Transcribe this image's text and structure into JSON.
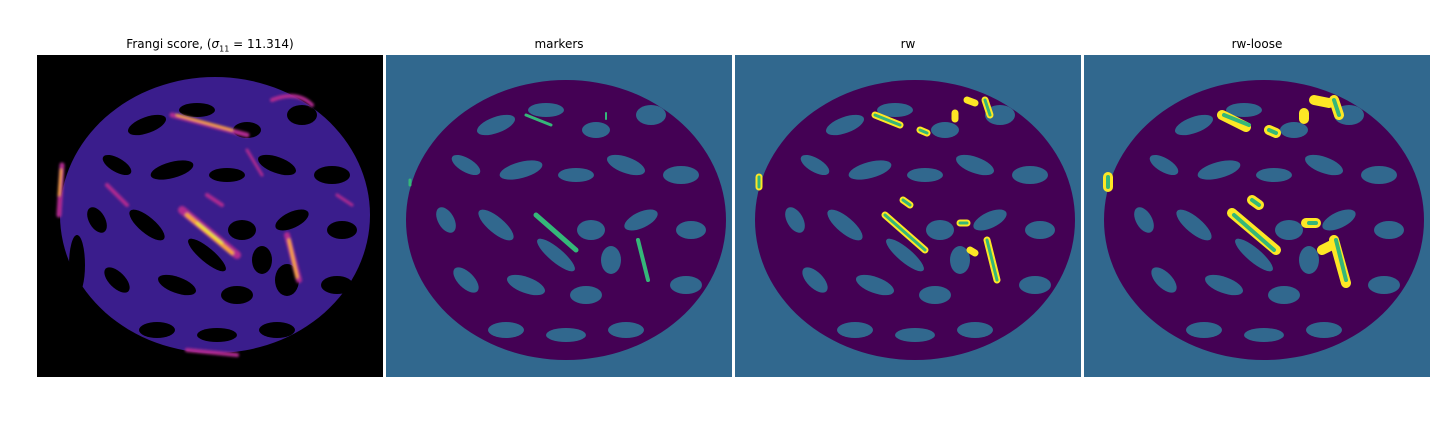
{
  "figure": {
    "panels": [
      {
        "id": "frangi",
        "title_prefix": "Frangi score, (",
        "sigma_symbol": "σ",
        "sigma_subscript": "11",
        "title_suffix": " = 11.314)",
        "colormap": "plasma"
      },
      {
        "id": "markers",
        "title": "markers",
        "colormap": "viridis"
      },
      {
        "id": "rw",
        "title": "rw",
        "colormap": "viridis"
      },
      {
        "id": "rw-loose",
        "title": "rw-loose",
        "colormap": "viridis"
      }
    ],
    "colors": {
      "frangi_background": "#000000",
      "frangi_low": "#3a1d8c",
      "frangi_mid": "#b12a90",
      "frangi_high": "#fca636",
      "frangi_peak": "#f0f921",
      "label_background": "#31688e",
      "label_tissue": "#440154",
      "label_marker": "#35b779",
      "label_vessel_edge": "#fde725"
    }
  }
}
